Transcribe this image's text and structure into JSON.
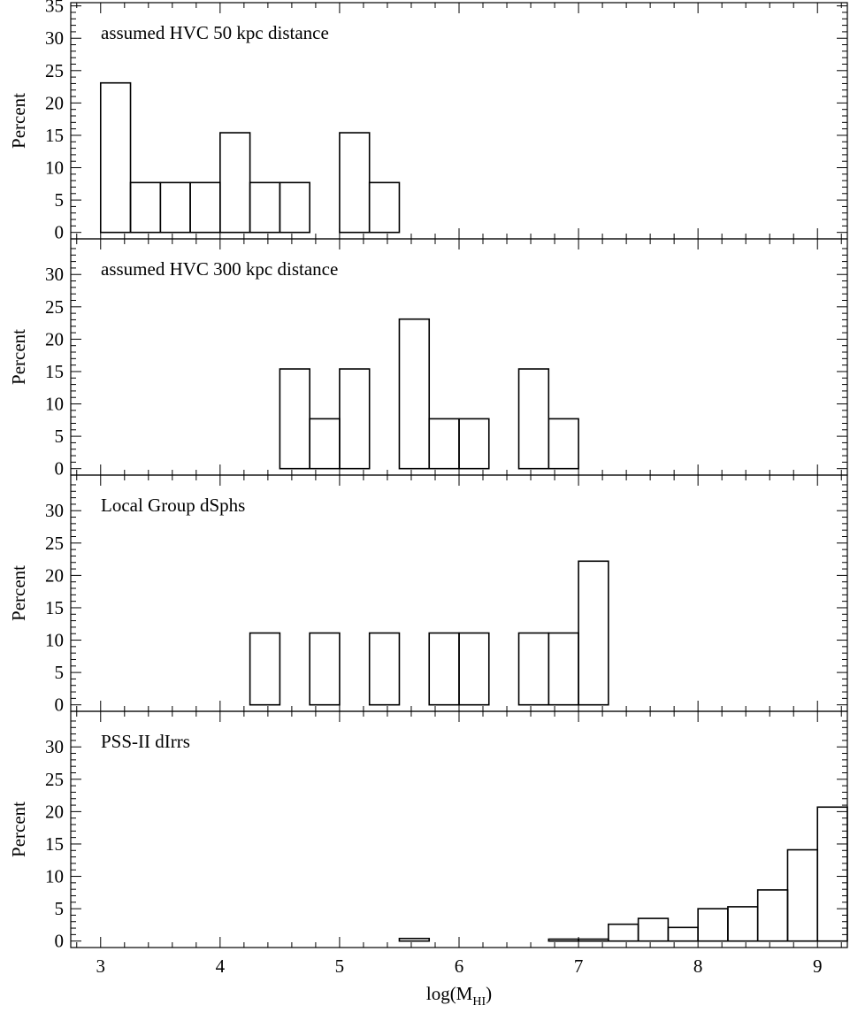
{
  "chart_data": {
    "type": "bar",
    "layout": "four stacked step-histogram panels sharing one x axis",
    "xlabel": "log(M",
    "xlabel_sub": "HI",
    "xlabel_close": ")",
    "xlim": [
      2.75,
      9.25
    ],
    "x_ticks": [
      "3",
      "4",
      "5",
      "6",
      "7",
      "8",
      "9"
    ],
    "x_tick_values": [
      3,
      4,
      5,
      6,
      7,
      8,
      9
    ],
    "ylabel": "Percent",
    "bin_width": 0.25,
    "grid": false,
    "line_color": "#000000",
    "panels": [
      {
        "title": "assumed HVC 50 kpc distance",
        "ylim": [
          -1,
          35.5
        ],
        "y_ticks": [
          "0",
          "5",
          "10",
          "15",
          "20",
          "25",
          "30",
          "35"
        ],
        "y_tick_values": [
          0,
          5,
          10,
          15,
          20,
          25,
          30,
          35
        ],
        "bin_starts": [
          3.0,
          3.25,
          3.5,
          3.75,
          4.0,
          4.25,
          4.5,
          4.75,
          5.0,
          5.25
        ],
        "values": [
          23.1,
          7.7,
          7.7,
          7.7,
          15.4,
          7.7,
          7.7,
          0,
          15.4,
          7.7
        ]
      },
      {
        "title": "assumed HVC 300 kpc distance",
        "ylim": [
          -1,
          35.5
        ],
        "y_ticks": [
          "0",
          "5",
          "10",
          "15",
          "20",
          "25",
          "30"
        ],
        "y_tick_values": [
          0,
          5,
          10,
          15,
          20,
          25,
          30
        ],
        "bin_starts": [
          4.5,
          4.75,
          5.0,
          5.25,
          5.5,
          5.75,
          6.0,
          6.25,
          6.5,
          6.75
        ],
        "values": [
          15.4,
          7.7,
          15.4,
          0,
          23.1,
          7.7,
          7.7,
          0,
          15.4,
          7.7
        ]
      },
      {
        "title": "Local Group dSphs",
        "ylim": [
          -1,
          35.5
        ],
        "y_ticks": [
          "0",
          "5",
          "10",
          "15",
          "20",
          "25",
          "30"
        ],
        "y_tick_values": [
          0,
          5,
          10,
          15,
          20,
          25,
          30
        ],
        "bin_starts": [
          4.25,
          4.5,
          4.75,
          5.0,
          5.25,
          5.5,
          5.75,
          6.0,
          6.25,
          6.5,
          6.75,
          7.0
        ],
        "values": [
          11.1,
          0,
          11.1,
          0,
          11.1,
          0,
          11.1,
          11.1,
          0,
          11.1,
          11.1,
          22.2
        ]
      },
      {
        "title": "PSS-II dIrrs",
        "ylim": [
          -1,
          35.5
        ],
        "y_ticks": [
          "0",
          "5",
          "10",
          "15",
          "20",
          "25",
          "30"
        ],
        "y_tick_values": [
          0,
          5,
          10,
          15,
          20,
          25,
          30
        ],
        "bin_starts": [
          5.5,
          5.75,
          6.0,
          6.25,
          6.5,
          6.75,
          7.0,
          7.25,
          7.5,
          7.75,
          8.0,
          8.25,
          8.5,
          8.75,
          9.0
        ],
        "values": [
          0.4,
          0,
          0,
          0,
          0,
          0.3,
          0.3,
          2.6,
          3.5,
          2.1,
          5.0,
          5.3,
          7.9,
          14.1,
          20.7
        ]
      }
    ]
  }
}
